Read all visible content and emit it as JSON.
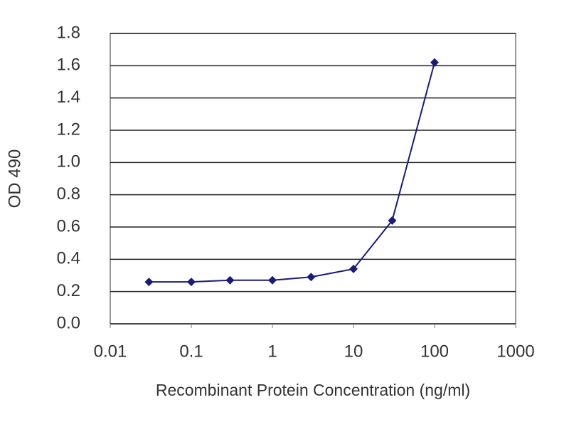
{
  "chart_data": {
    "type": "line",
    "xlabel": "Recombinant Protein Concentration (ng/ml)",
    "ylabel": "OD 490",
    "x": [
      0.03,
      0.1,
      0.3,
      1,
      3,
      10,
      30,
      100
    ],
    "values": [
      0.26,
      0.26,
      0.27,
      0.27,
      0.29,
      0.34,
      0.64,
      1.62
    ],
    "color": "#1a1a7a",
    "xscale": "log",
    "xlim": [
      0.01,
      1000
    ],
    "xticks": [
      0.01,
      0.1,
      1,
      10,
      100,
      1000
    ],
    "ylim": [
      0,
      1.8
    ],
    "yticks": [
      {
        "value": 0,
        "label": "0.0"
      },
      0.2,
      0.4,
      0.6,
      0.8,
      {
        "value": 1,
        "label": "1.0"
      },
      1.2,
      1.4,
      1.6,
      1.8
    ],
    "grid": true
  }
}
